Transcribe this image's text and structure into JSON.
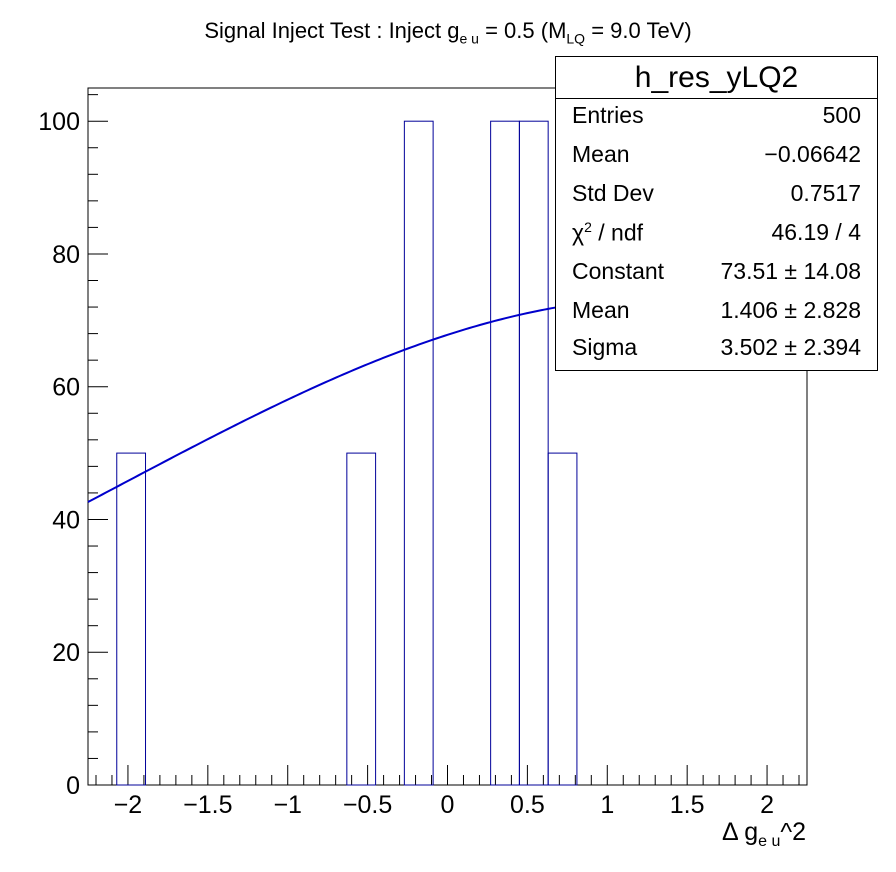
{
  "title": {
    "prefix": "Signal Inject Test : Inject g",
    "prefix_sub": "e u",
    "middle": " = 0.5 (M",
    "middle_sub": "LQ",
    "suffix": " = 9.0 TeV)"
  },
  "x_label": {
    "main": "Δ g",
    "sub": "e u",
    "sup": "^2"
  },
  "stats": {
    "name": "h_res_yLQ2",
    "rows": [
      {
        "key": "Entries",
        "value": "500"
      },
      {
        "key": "Mean",
        "value": "−0.06642"
      },
      {
        "key": "Std Dev",
        "value": "0.7517"
      },
      {
        "key": "χ",
        "key_sup": "2",
        "key_rest": " / ndf",
        "value": "46.19 / 4"
      },
      {
        "key": "Constant",
        "value": "73.51 ± 14.08"
      },
      {
        "key": "Mean",
        "value": "1.406 ± 2.828"
      },
      {
        "key": "Sigma",
        "value": "3.502 ± 2.394"
      }
    ]
  },
  "chart_data": {
    "type": "bar",
    "histogram": true,
    "xlim": [
      -2.25,
      2.25
    ],
    "ylim": [
      0,
      105
    ],
    "x_ticks": [
      -2,
      -1.5,
      -1,
      -0.5,
      0,
      0.5,
      1,
      1.5,
      2
    ],
    "x_tick_labels": [
      "−2",
      "−1.5",
      "−1",
      "−0.5",
      "0",
      "0.5",
      "1",
      "1.5",
      "2"
    ],
    "y_ticks": [
      0,
      20,
      40,
      60,
      80,
      100
    ],
    "y_tick_labels": [
      "0",
      "20",
      "40",
      "60",
      "80",
      "100"
    ],
    "bin_width": 0.18,
    "bins": [
      {
        "low": -2.07,
        "high": -1.89,
        "value": 50
      },
      {
        "low": -0.63,
        "high": -0.45,
        "value": 50
      },
      {
        "low": -0.27,
        "high": -0.09,
        "value": 100
      },
      {
        "low": 0.27,
        "high": 0.45,
        "value": 100
      },
      {
        "low": 0.45,
        "high": 0.63,
        "value": 100
      },
      {
        "low": 0.63,
        "high": 0.81,
        "value": 50
      }
    ],
    "fit": {
      "function": "gaus",
      "constant": 73.51,
      "mean": 1.406,
      "sigma": 3.502,
      "x_range": [
        -2.25,
        2.25
      ],
      "color": "#0000cc"
    },
    "hist_color": "#000099"
  }
}
